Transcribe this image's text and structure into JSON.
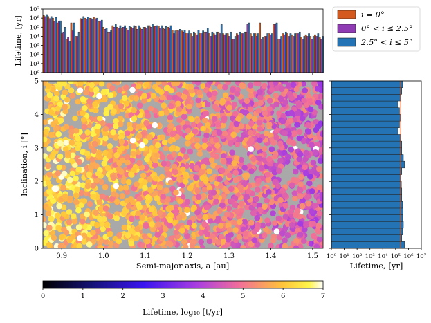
{
  "top_panel": {
    "ylabel": "Lifetime, [yr]",
    "ytick_labels": [
      "10⁰",
      "10¹",
      "10²",
      "10³",
      "10⁴",
      "10⁵",
      "10⁶",
      "10⁷"
    ],
    "legend": [
      {
        "label": "i = 0°",
        "color": "#d4591e"
      },
      {
        "label": "0° < i ≤ 2.5°",
        "color": "#8f3bb4"
      },
      {
        "label": "2.5° < i ≤ 5°",
        "color": "#2474b5"
      }
    ]
  },
  "main_panel": {
    "xlabel": "Semi-major axis, a [au]",
    "ylabel": "Inclination, i [°]",
    "xtick_labels": [
      "0.9",
      "1.0",
      "1.1",
      "1.2",
      "1.3",
      "1.4",
      "1.5"
    ],
    "ytick_labels": [
      "0",
      "1",
      "2",
      "3",
      "4",
      "5"
    ],
    "background_color": "#a9a9a9"
  },
  "right_panel": {
    "xlabel": "Lifetime, [yr]",
    "xtick_labels": [
      "10⁰",
      "10¹",
      "10²",
      "10³",
      "10⁴",
      "10⁵",
      "10⁶",
      "10⁷"
    ]
  },
  "colorbar": {
    "label": "Lifetime, log₁₀ [t/yr]",
    "tick_labels": [
      "0",
      "1",
      "2",
      "3",
      "4",
      "5",
      "6",
      "7"
    ],
    "colormap": "gnuplot2"
  },
  "chart_data": [
    {
      "type": "bar",
      "title": "",
      "ylabel": "Lifetime, [yr]",
      "yscale": "log",
      "ylim": [
        1,
        10000000
      ],
      "xlim": [
        0.855,
        1.525
      ],
      "bin_starts": [
        0.855,
        0.866,
        0.877,
        0.888,
        0.899,
        0.91,
        0.921,
        0.932,
        0.943,
        0.954,
        0.965,
        0.976,
        0.987,
        0.998,
        1.009,
        1.02,
        1.031,
        1.042,
        1.053,
        1.064,
        1.075,
        1.086,
        1.097,
        1.108,
        1.119,
        1.13,
        1.141,
        1.152,
        1.163,
        1.174,
        1.185,
        1.196,
        1.207,
        1.218,
        1.229,
        1.24,
        1.251,
        1.262,
        1.273,
        1.284,
        1.295,
        1.306,
        1.317,
        1.328,
        1.339,
        1.35,
        1.361,
        1.372,
        1.383,
        1.394,
        1.405,
        1.416,
        1.427,
        1.438,
        1.449,
        1.46,
        1.471,
        1.482,
        1.493,
        1.504,
        1.515
      ],
      "series": [
        {
          "name": "i = 0°",
          "values": [
            2000000,
            1500000,
            1000000,
            300000,
            20000,
            5000,
            300000,
            10000,
            900000,
            1000000,
            1000000,
            1300000,
            400000,
            100000,
            30000,
            150000,
            100000,
            80000,
            70000,
            100000,
            120000,
            90000,
            100000,
            150000,
            140000,
            130000,
            70000,
            100000,
            50000,
            50000,
            40000,
            25000,
            20000,
            25000,
            25000,
            30000,
            25000,
            20000,
            30000,
            20000,
            20000,
            5000,
            20000,
            20000,
            30000,
            20000,
            20000,
            300000,
            10000,
            20000,
            200000,
            5000,
            20000,
            20000,
            15000,
            20000,
            8000,
            15000,
            10000,
            15000,
            8000
          ]
        },
        {
          "name": "0° < i ≤ 2.5°",
          "values": [
            1500000,
            900000,
            400000,
            400000,
            30000,
            8000,
            40000,
            10000,
            700000,
            800000,
            900000,
            900000,
            500000,
            60000,
            30000,
            100000,
            80000,
            100000,
            50000,
            80000,
            60000,
            60000,
            80000,
            100000,
            120000,
            80000,
            60000,
            80000,
            20000,
            40000,
            30000,
            20000,
            10000,
            15000,
            20000,
            30000,
            10000,
            15000,
            20000,
            15000,
            10000,
            5000,
            15000,
            20000,
            200000,
            10000,
            10000,
            5000,
            10000,
            15000,
            200000,
            5000,
            15000,
            10000,
            10000,
            20000,
            5000,
            10000,
            5000,
            10000,
            5000
          ]
        },
        {
          "name": "2.5° < i ≤ 5°",
          "values": [
            2500000,
            1500000,
            1200000,
            500000,
            100000,
            3000,
            300000,
            30000,
            1500000,
            1300000,
            800000,
            1000000,
            600000,
            80000,
            50000,
            200000,
            150000,
            150000,
            120000,
            150000,
            150000,
            100000,
            150000,
            200000,
            150000,
            150000,
            120000,
            150000,
            40000,
            60000,
            50000,
            40000,
            30000,
            50000,
            40000,
            80000,
            30000,
            30000,
            200000,
            20000,
            30000,
            10000,
            30000,
            30000,
            300000,
            20000,
            20000,
            8000,
            20000,
            20000,
            300000,
            10000,
            30000,
            20000,
            20000,
            30000,
            10000,
            20000,
            10000,
            20000,
            10000
          ]
        }
      ]
    },
    {
      "type": "scatter",
      "xlabel": "Semi-major axis, a [au]",
      "ylabel": "Inclination, i [°]",
      "xlim": [
        0.855,
        1.525
      ],
      "ylim": [
        0,
        5
      ],
      "color_variable": "Lifetime, log₁₀ [t/yr]",
      "clim": [
        0,
        7
      ],
      "points_generated": "approximately 2500 points; lifetime (log10) decreases with semi-major axis: ~6-7 near a=0.86-1.0, ~5-6 near 1.0-1.2, ~4-5 beyond 1.2; roughly uniform in inclination 0-5°",
      "seed": 7
    },
    {
      "type": "bar",
      "orientation": "horizontal",
      "xlabel": "Lifetime, [yr]",
      "xscale": "log",
      "xlim": [
        1,
        10000000
      ],
      "ylim": [
        0,
        5
      ],
      "bin_starts": [
        0,
        0.2,
        0.4,
        0.6,
        0.8,
        1.0,
        1.2,
        1.4,
        1.6,
        1.8,
        2.0,
        2.2,
        2.4,
        2.6,
        2.8,
        3.0,
        3.2,
        3.4,
        3.6,
        3.8,
        4.0,
        4.2,
        4.4,
        4.6,
        4.8
      ],
      "values": [
        500000,
        300000,
        350000,
        400000,
        350000,
        380000,
        350000,
        300000,
        300000,
        280000,
        250000,
        300000,
        500000,
        400000,
        300000,
        300000,
        250000,
        150000,
        200000,
        250000,
        200000,
        150000,
        250000,
        300000,
        350000
      ],
      "median_line": 250000,
      "median_line_color": "#d4591e"
    }
  ]
}
